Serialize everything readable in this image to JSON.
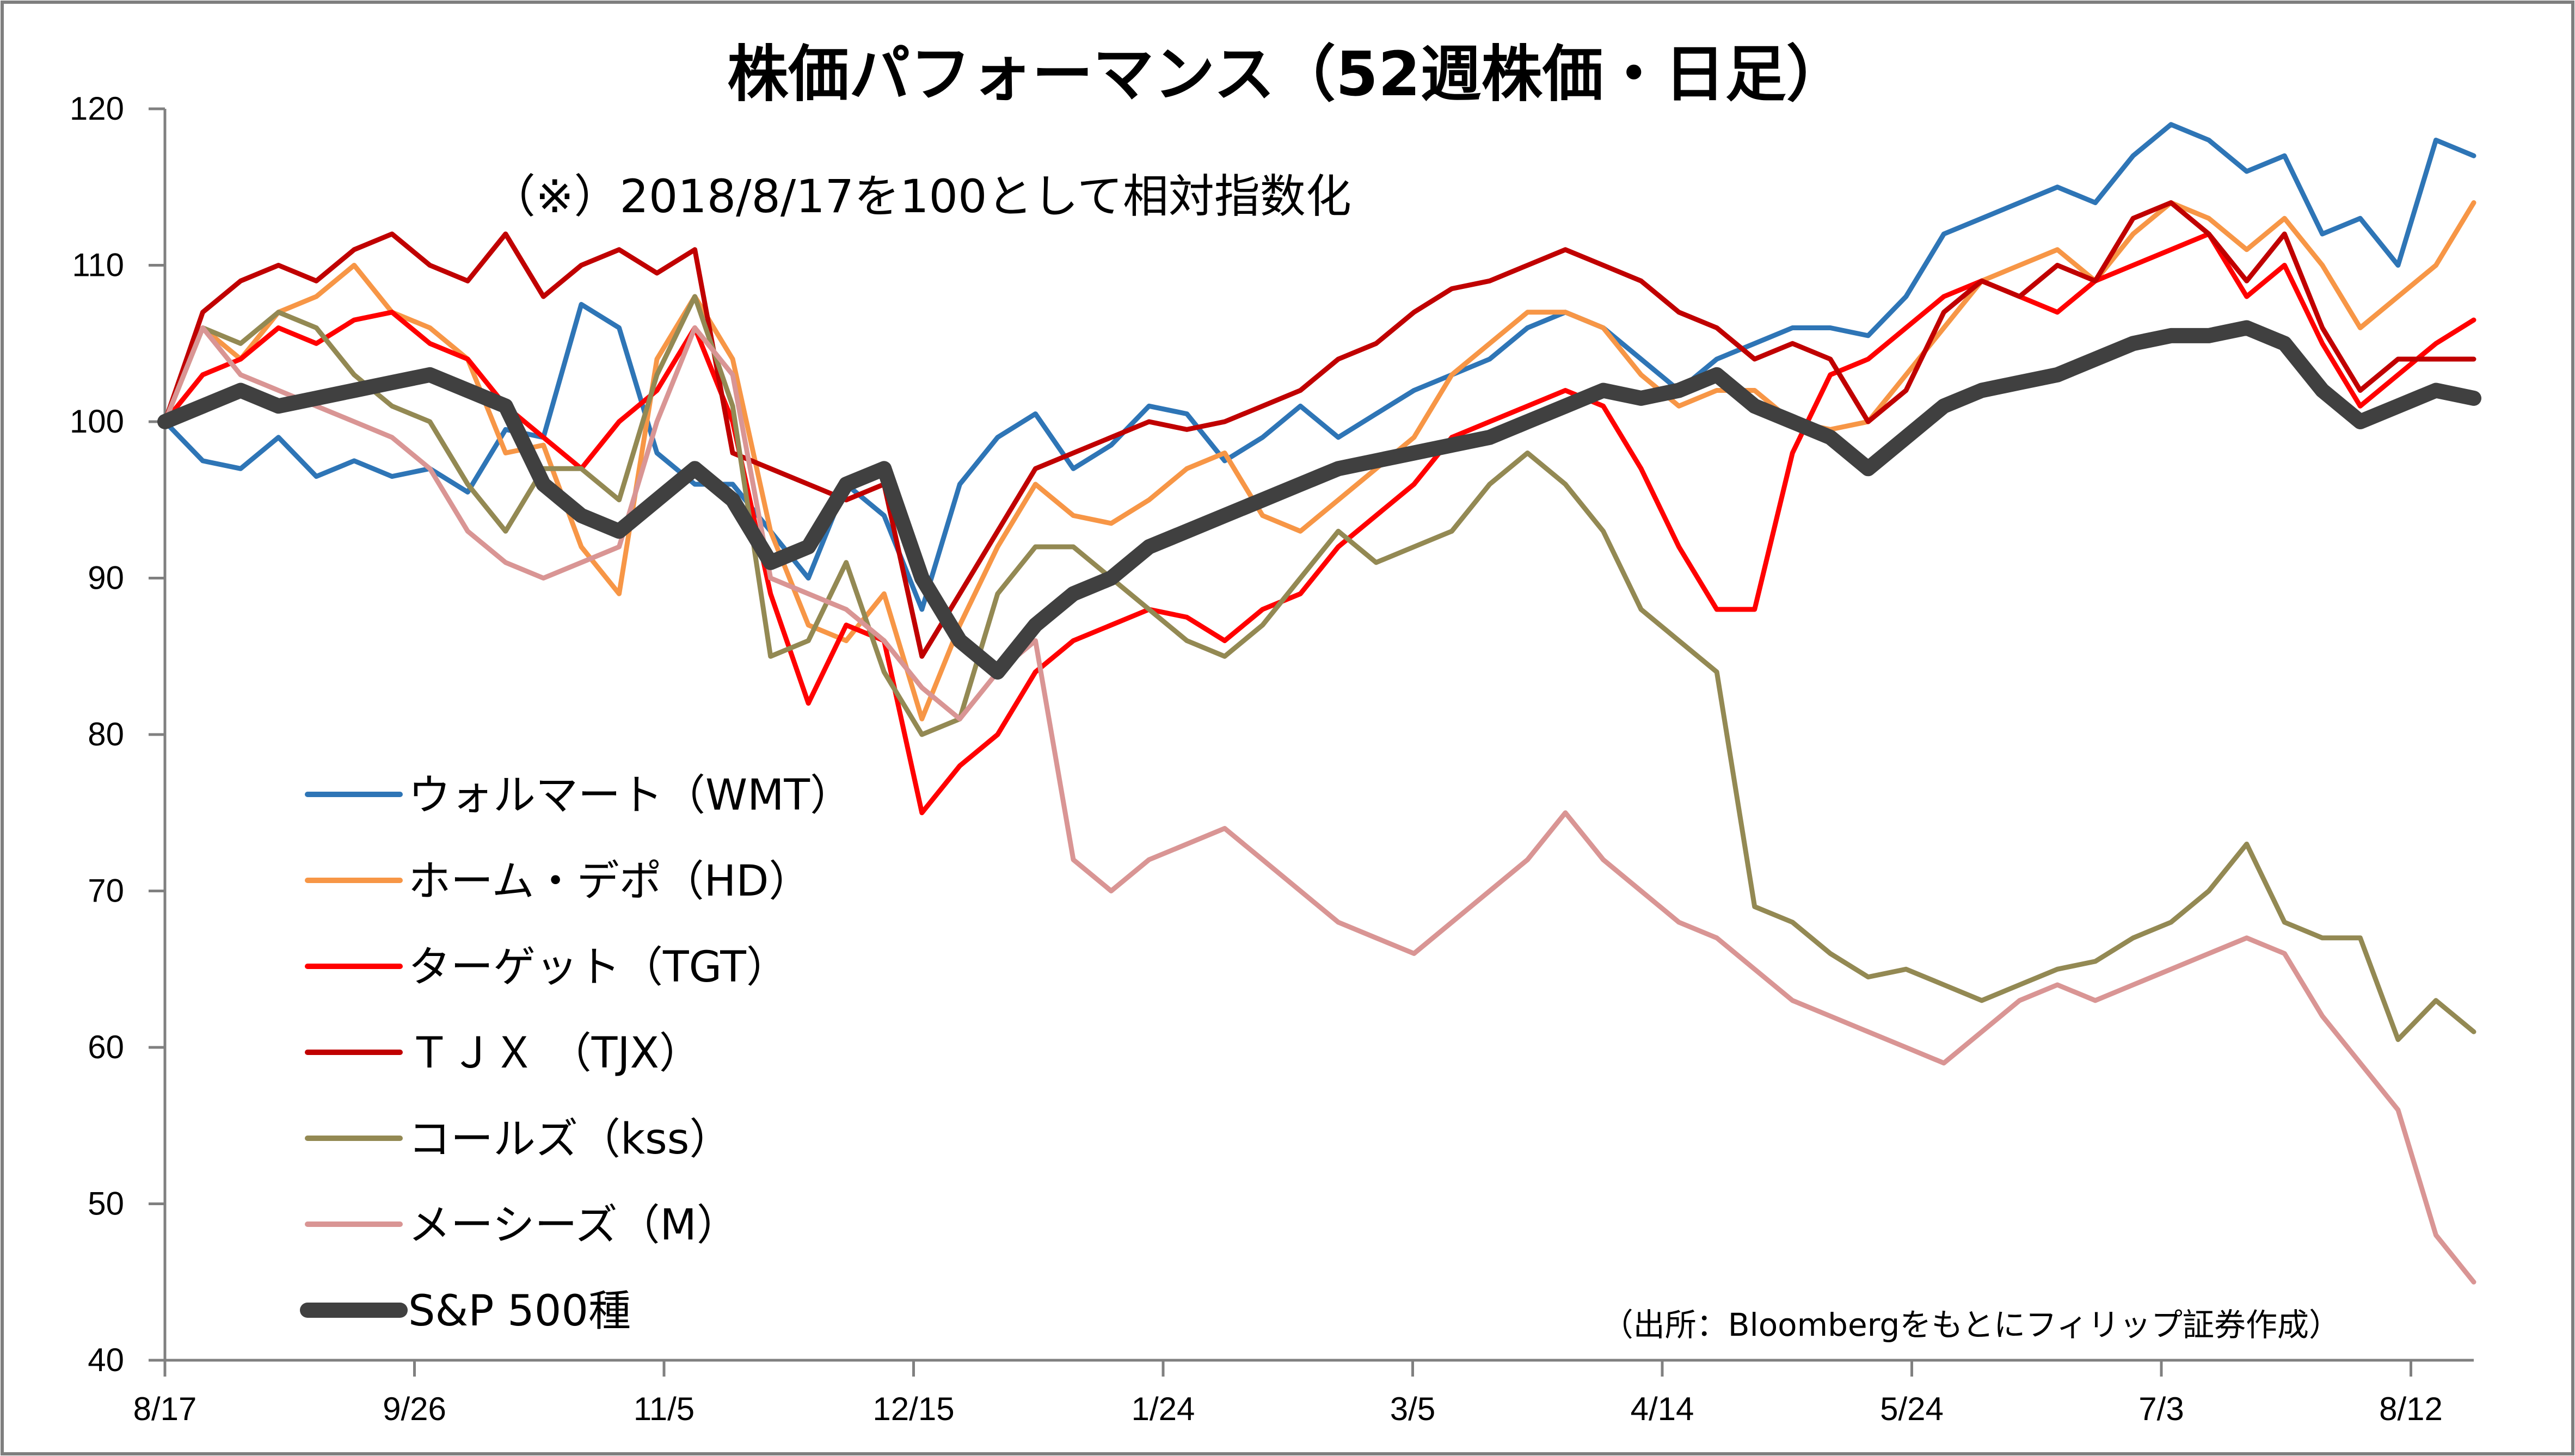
{
  "chart_data": {
    "type": "line",
    "title": "株価パフォーマンス（52週株価・日足）",
    "subtitle": "（※）2018/8/17を100として相対指数化",
    "source": "（出所：Bloombergをもとにフィリップ証券作成）",
    "x_ticks": [
      "8/17",
      "9/26",
      "11/5",
      "12/15",
      "1/24",
      "3/5",
      "4/14",
      "5/24",
      "7/3",
      "8/12"
    ],
    "y_ticks": [
      "40",
      "50",
      "60",
      "70",
      "80",
      "90",
      "100",
      "110",
      "120"
    ],
    "ylim": [
      40,
      120
    ],
    "legend_position": "left",
    "grid": false,
    "series": [
      {
        "name": "ウォルマート（WMT）",
        "color": "#2E75B6",
        "values": [
          100,
          97.5,
          97,
          99,
          96.5,
          97.5,
          96.5,
          97,
          95.5,
          99.5,
          99,
          107.5,
          106,
          98,
          96,
          96,
          93,
          90,
          96,
          94,
          88,
          96,
          99,
          100.5,
          97,
          98.5,
          101,
          100.5,
          97.5,
          99,
          101,
          99,
          100.5,
          102,
          103,
          104,
          106,
          107,
          106,
          104,
          102,
          104,
          105,
          106,
          106,
          105.5,
          108,
          112,
          113,
          114,
          115,
          114,
          117,
          119,
          118,
          116,
          117,
          112,
          113,
          110,
          118,
          117
        ]
      },
      {
        "name": "ホーム・デポ（HD）",
        "color": "#F79646",
        "values": [
          100,
          106,
          104,
          107,
          108,
          110,
          107,
          106,
          104,
          98,
          98.5,
          92,
          89,
          104,
          108,
          104,
          93,
          87,
          86,
          89,
          81,
          87,
          92,
          96,
          94,
          93.5,
          95,
          97,
          98,
          94,
          93,
          95,
          97,
          99,
          103,
          105,
          107,
          107,
          106,
          103,
          101,
          102,
          102,
          100,
          99.5,
          100,
          103,
          106,
          109,
          110,
          111,
          109,
          112,
          114,
          113,
          111,
          113,
          110,
          106,
          108,
          110,
          114
        ]
      },
      {
        "name": "ターゲット（TGT）",
        "color": "#FF0000",
        "values": [
          100,
          103,
          104,
          106,
          105,
          106.5,
          107,
          105,
          104,
          101,
          99,
          97,
          100,
          102,
          106,
          100,
          89,
          82,
          87,
          86,
          75,
          78,
          80,
          84,
          86,
          87,
          88,
          87.5,
          86,
          88,
          89,
          92,
          94,
          96,
          99,
          100,
          101,
          102,
          101,
          97,
          92,
          88,
          88,
          98,
          103,
          104,
          106,
          108,
          109,
          108,
          107,
          109,
          110,
          111,
          112,
          108,
          110,
          105,
          101,
          103,
          105,
          106.5
        ]
      },
      {
        "name": "ＴＪＸ （TJX）",
        "color": "#C00000",
        "values": [
          100,
          107,
          109,
          110,
          109,
          111,
          112,
          110,
          109,
          112,
          108,
          110,
          111,
          109.5,
          111,
          98,
          97,
          96,
          95,
          96,
          85,
          89,
          93,
          97,
          98,
          99,
          100,
          99.5,
          100,
          101,
          102,
          104,
          105,
          107,
          108.5,
          109,
          110,
          111,
          110,
          109,
          107,
          106,
          104,
          105,
          104,
          100,
          102,
          107,
          109,
          108,
          110,
          109,
          113,
          114,
          112,
          109,
          112,
          106,
          102,
          104,
          104,
          104
        ]
      },
      {
        "name": "コールズ（kss）",
        "color": "#938953",
        "values": [
          100,
          106,
          105,
          107,
          106,
          103,
          101,
          100,
          96,
          93,
          97,
          97,
          95,
          103,
          108,
          101,
          85,
          86,
          91,
          84,
          80,
          81,
          89,
          92,
          92,
          90,
          88,
          86,
          85,
          87,
          90,
          93,
          91,
          92,
          93,
          96,
          98,
          96,
          93,
          88,
          86,
          84,
          69,
          68,
          66,
          64.5,
          65,
          64,
          63,
          64,
          65,
          65.5,
          67,
          68,
          70,
          73,
          68,
          67,
          67,
          60.5,
          63,
          61
        ]
      },
      {
        "name": "メーシーズ（M）",
        "color": "#D99594",
        "values": [
          100,
          106,
          103,
          102,
          101,
          100,
          99,
          97,
          93,
          91,
          90,
          91,
          92,
          100,
          106,
          103,
          90,
          89,
          88,
          86,
          83,
          81,
          84,
          86,
          72,
          70,
          72,
          73,
          74,
          72,
          70,
          68,
          67,
          66,
          68,
          70,
          72,
          75,
          72,
          70,
          68,
          67,
          65,
          63,
          62,
          61,
          60,
          59,
          61,
          63,
          64,
          63,
          64,
          65,
          66,
          67,
          66,
          62,
          59,
          56,
          48,
          45
        ]
      },
      {
        "name": "S&P 500種",
        "color": "#404040",
        "values": [
          100,
          101,
          102,
          101,
          101.5,
          102,
          102.5,
          103,
          102,
          101,
          96,
          94,
          93,
          95,
          97,
          95,
          91,
          92,
          96,
          97,
          90,
          86,
          84,
          87,
          89,
          90,
          92,
          93,
          94,
          95,
          96,
          97,
          97.5,
          98,
          98.5,
          99,
          100,
          101,
          102,
          101.5,
          102,
          103,
          101,
          100,
          99,
          97,
          99,
          101,
          102,
          102.5,
          103,
          104,
          105,
          105.5,
          105.5,
          106,
          105,
          102,
          100,
          101,
          102,
          101.5
        ]
      }
    ]
  }
}
